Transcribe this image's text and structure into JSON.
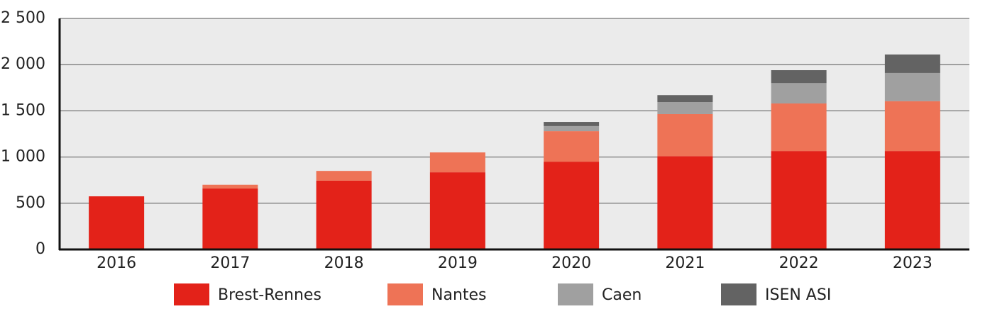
{
  "chart_data": {
    "type": "stacked-bar",
    "categories": [
      "2016",
      "2017",
      "2018",
      "2019",
      "2020",
      "2021",
      "2022",
      "2023"
    ],
    "series": [
      {
        "name": "Brest-Rennes",
        "color": "#e32219",
        "values": [
          575,
          660,
          745,
          835,
          950,
          1010,
          1065,
          1065
        ]
      },
      {
        "name": "Nantes",
        "color": "#ee7356",
        "values": [
          null,
          40,
          105,
          215,
          330,
          455,
          515,
          540
        ]
      },
      {
        "name": "Caen",
        "color": "#a0a0a0",
        "values": [
          null,
          null,
          null,
          null,
          55,
          130,
          220,
          305
        ]
      },
      {
        "name": "ISEN ASI",
        "color": "#636363",
        "values": [
          null,
          null,
          null,
          null,
          45,
          75,
          140,
          200
        ]
      }
    ],
    "ylim": [
      0,
      2500
    ],
    "yticks": [
      0,
      500,
      {
        "value": 1000,
        "label": "1 000"
      },
      {
        "value": 1500,
        "label": "1 500"
      },
      {
        "value": 2000,
        "label": "2 000"
      },
      {
        "value": 2500,
        "label": "2 500"
      }
    ],
    "grid": true,
    "legend": "bottom"
  }
}
